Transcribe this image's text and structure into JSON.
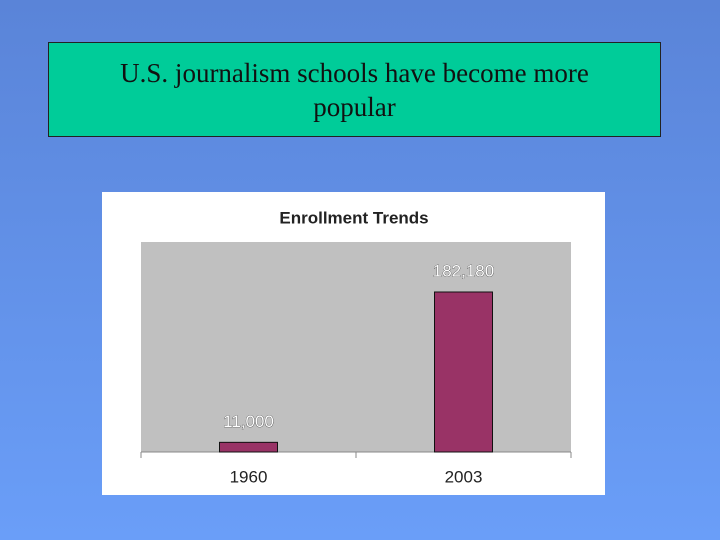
{
  "slide": {
    "title": "U.S. journalism schools have become more popular"
  },
  "chart_data": {
    "type": "bar",
    "title": "Enrollment Trends",
    "categories": [
      "1960",
      "2003"
    ],
    "values": [
      11000,
      182180
    ],
    "value_labels": [
      "11,000",
      "182,180"
    ],
    "color": "#993366"
  }
}
